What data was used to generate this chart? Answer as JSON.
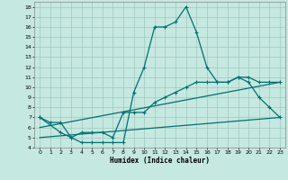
{
  "xlabel": "Humidex (Indice chaleur)",
  "xlim": [
    -0.5,
    23.5
  ],
  "ylim": [
    4,
    18.5
  ],
  "xticks": [
    0,
    1,
    2,
    3,
    4,
    5,
    6,
    7,
    8,
    9,
    10,
    11,
    12,
    13,
    14,
    15,
    16,
    17,
    18,
    19,
    20,
    21,
    22,
    23
  ],
  "yticks": [
    4,
    5,
    6,
    7,
    8,
    9,
    10,
    11,
    12,
    13,
    14,
    15,
    16,
    17,
    18
  ],
  "bg_color": "#c5e8e0",
  "line_color": "#007070",
  "grid_color": "#a0c8c0",
  "line1_x": [
    0,
    1,
    2,
    3,
    4,
    5,
    6,
    7,
    8,
    9,
    10,
    11,
    12,
    13,
    14,
    15,
    16,
    17,
    18,
    19,
    20,
    21,
    22,
    23
  ],
  "line1_y": [
    7.0,
    6.5,
    6.5,
    5.0,
    4.5,
    4.5,
    4.5,
    4.5,
    4.5,
    9.5,
    12.0,
    16.0,
    16.0,
    16.5,
    18.0,
    15.5,
    12.0,
    10.5,
    10.5,
    11.0,
    10.5,
    9.0,
    8.0,
    7.0
  ],
  "line2_x": [
    0,
    2,
    3,
    4,
    5,
    6,
    7,
    8,
    9,
    10,
    11,
    12,
    13,
    14,
    15,
    16,
    17,
    18,
    19,
    20,
    21,
    22,
    23
  ],
  "line2_y": [
    7.0,
    5.5,
    5.0,
    5.5,
    5.5,
    5.5,
    5.0,
    7.5,
    7.5,
    7.5,
    8.5,
    9.0,
    9.5,
    10.0,
    10.5,
    10.5,
    10.5,
    10.5,
    11.0,
    11.0,
    10.5,
    10.5,
    10.5
  ],
  "line3_x": [
    0,
    23
  ],
  "line3_y": [
    6.0,
    10.5
  ],
  "line4_x": [
    0,
    23
  ],
  "line4_y": [
    5.0,
    7.0
  ]
}
